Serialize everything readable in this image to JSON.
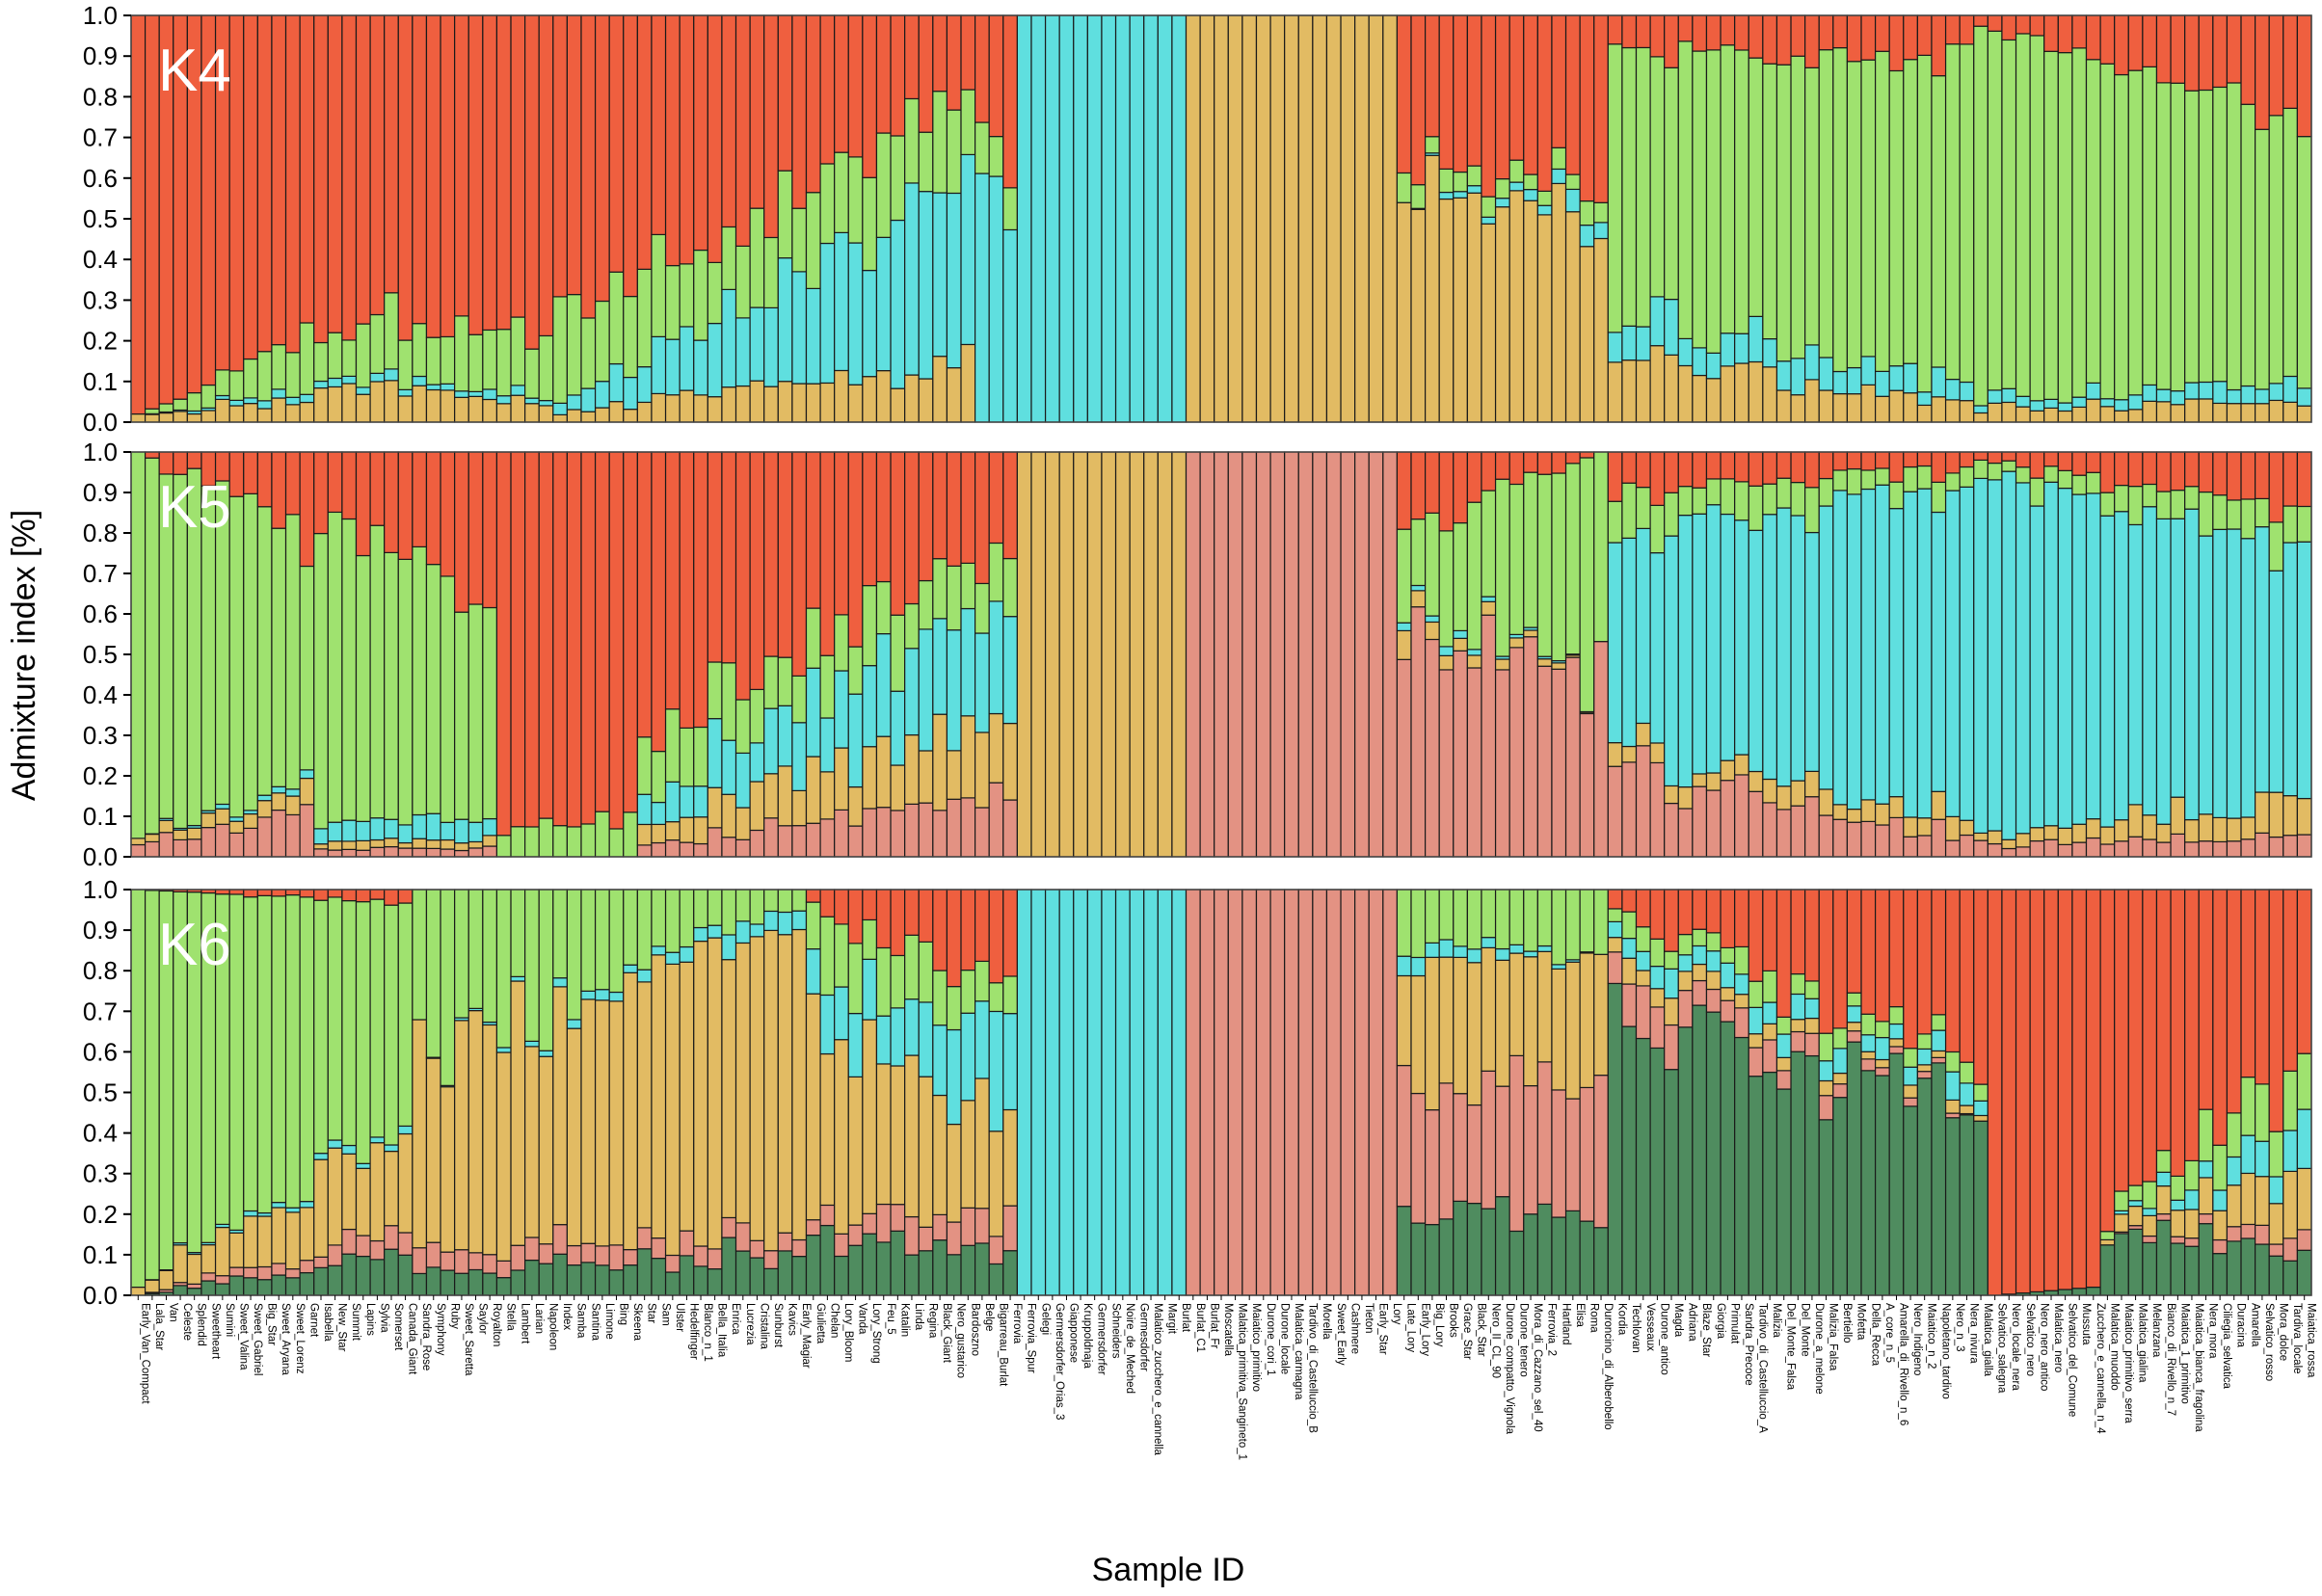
{
  "chart_data": [
    {
      "type": "bar",
      "stacked": true,
      "panel_label": "K4",
      "ylim": [
        0,
        1
      ],
      "yticks": [
        "0.0",
        "0.1",
        "0.2",
        "0.3",
        "0.4",
        "0.5",
        "0.6",
        "0.7",
        "0.8",
        "0.9",
        "1.0"
      ],
      "cluster_colors": [
        "#e2bb63",
        "#5fdfdf",
        "#9fe26f",
        "#ef5f3f"
      ],
      "group_profiles": [
        {
          "from": 0,
          "to": 13,
          "start": [
            0.02,
            0.0,
            0.0,
            0.98
          ],
          "end": [
            0.05,
            0.02,
            0.12,
            0.81
          ]
        },
        {
          "from": 13,
          "to": 30,
          "start": [
            0.1,
            0.02,
            0.12,
            0.76
          ],
          "end": [
            0.05,
            0.02,
            0.15,
            0.78
          ]
        },
        {
          "from": 30,
          "to": 60,
          "start": [
            0.02,
            0.03,
            0.2,
            0.75
          ],
          "end": [
            0.15,
            0.45,
            0.2,
            0.2
          ]
        },
        {
          "from": 60,
          "to": 63,
          "start": [
            0.0,
            0.6,
            0.1,
            0.3
          ],
          "end": [
            0.0,
            0.6,
            0.1,
            0.3
          ]
        },
        {
          "from": 63,
          "to": 75,
          "start": [
            0.0,
            1.0,
            0.0,
            0.0
          ],
          "end": [
            0.0,
            1.0,
            0.0,
            0.0
          ]
        },
        {
          "from": 75,
          "to": 90,
          "start": [
            1.0,
            0.0,
            0.0,
            0.0
          ],
          "end": [
            1.0,
            0.0,
            0.0,
            0.0
          ]
        },
        {
          "from": 90,
          "to": 105,
          "start": [
            0.6,
            0.0,
            0.05,
            0.35
          ],
          "end": [
            0.45,
            0.05,
            0.05,
            0.45
          ]
        },
        {
          "from": 105,
          "to": 131,
          "start": [
            0.15,
            0.1,
            0.65,
            0.1
          ],
          "end": [
            0.05,
            0.05,
            0.8,
            0.1
          ]
        },
        {
          "from": 131,
          "to": 155,
          "start": [
            0.03,
            0.02,
            0.93,
            0.02
          ],
          "end": [
            0.05,
            0.05,
            0.62,
            0.28
          ]
        }
      ],
      "values_note": "Per-sample stacked proportions from bottom: yellow, cyan, green, red"
    },
    {
      "type": "bar",
      "stacked": true,
      "panel_label": "K5",
      "ylim": [
        0,
        1
      ],
      "yticks": [
        "0.0",
        "0.1",
        "0.2",
        "0.3",
        "0.4",
        "0.5",
        "0.6",
        "0.7",
        "0.8",
        "0.9",
        "1.0"
      ],
      "cluster_colors": [
        "#e39283",
        "#e2bb63",
        "#5fdfdf",
        "#9fe26f",
        "#ef5f3f"
      ],
      "group_profiles": [
        {
          "from": 0,
          "to": 13,
          "start": [
            0.03,
            0.02,
            0.0,
            0.95,
            0.0
          ],
          "end": [
            0.1,
            0.05,
            0.02,
            0.63,
            0.2
          ]
        },
        {
          "from": 13,
          "to": 26,
          "start": [
            0.02,
            0.02,
            0.05,
            0.7,
            0.21
          ],
          "end": [
            0.02,
            0.02,
            0.05,
            0.55,
            0.36
          ]
        },
        {
          "from": 26,
          "to": 36,
          "start": [
            0.0,
            0.0,
            0.0,
            0.05,
            0.95
          ],
          "end": [
            0.0,
            0.0,
            0.0,
            0.1,
            0.9
          ]
        },
        {
          "from": 36,
          "to": 63,
          "start": [
            0.03,
            0.05,
            0.07,
            0.15,
            0.7
          ],
          "end": [
            0.15,
            0.2,
            0.3,
            0.15,
            0.2
          ]
        },
        {
          "from": 63,
          "to": 75,
          "start": [
            0.0,
            1.0,
            0.0,
            0.0,
            0.0
          ],
          "end": [
            0.0,
            1.0,
            0.0,
            0.0,
            0.0
          ]
        },
        {
          "from": 75,
          "to": 90,
          "start": [
            1.0,
            0.0,
            0.0,
            0.0,
            0.0
          ],
          "end": [
            1.0,
            0.0,
            0.0,
            0.0,
            0.0
          ]
        },
        {
          "from": 90,
          "to": 105,
          "start": [
            0.55,
            0.05,
            0.02,
            0.2,
            0.18
          ],
          "end": [
            0.45,
            0.0,
            0.0,
            0.55,
            0.0
          ]
        },
        {
          "from": 105,
          "to": 131,
          "start": [
            0.2,
            0.05,
            0.55,
            0.1,
            0.1
          ],
          "end": [
            0.05,
            0.05,
            0.8,
            0.05,
            0.05
          ]
        },
        {
          "from": 131,
          "to": 155,
          "start": [
            0.03,
            0.02,
            0.9,
            0.03,
            0.02
          ],
          "end": [
            0.05,
            0.1,
            0.6,
            0.1,
            0.15
          ]
        }
      ],
      "values_note": "Per-sample stacked proportions from bottom: salmon, yellow, cyan, green, red"
    },
    {
      "type": "bar",
      "stacked": true,
      "panel_label": "K6",
      "ylim": [
        0,
        1
      ],
      "yticks": [
        "0.0",
        "0.1",
        "0.2",
        "0.3",
        "0.4",
        "0.5",
        "0.6",
        "0.7",
        "0.8",
        "0.9",
        "1.0"
      ],
      "cluster_colors": [
        "#4f8c5f",
        "#e39283",
        "#e2bb63",
        "#5fdfdf",
        "#9fe26f",
        "#ef5f3f"
      ],
      "group_profiles": [
        {
          "from": 0,
          "to": 20,
          "start": [
            0.0,
            0.0,
            0.02,
            0.0,
            0.98,
            0.0
          ],
          "end": [
            0.1,
            0.05,
            0.25,
            0.02,
            0.55,
            0.03
          ]
        },
        {
          "from": 20,
          "to": 48,
          "start": [
            0.05,
            0.05,
            0.5,
            0.0,
            0.4,
            0.0
          ],
          "end": [
            0.1,
            0.05,
            0.75,
            0.05,
            0.05,
            0.0
          ]
        },
        {
          "from": 48,
          "to": 63,
          "start": [
            0.15,
            0.05,
            0.5,
            0.1,
            0.15,
            0.05
          ],
          "end": [
            0.1,
            0.1,
            0.2,
            0.25,
            0.1,
            0.25
          ]
        },
        {
          "from": 63,
          "to": 75,
          "start": [
            0.0,
            0.0,
            0.0,
            1.0,
            0.0,
            0.0
          ],
          "end": [
            0.0,
            0.0,
            0.0,
            1.0,
            0.0,
            0.0
          ]
        },
        {
          "from": 75,
          "to": 90,
          "start": [
            0.0,
            1.0,
            0.0,
            0.0,
            0.0,
            0.0
          ],
          "end": [
            0.0,
            1.0,
            0.0,
            0.0,
            0.0,
            0.0
          ]
        },
        {
          "from": 90,
          "to": 105,
          "start": [
            0.2,
            0.3,
            0.3,
            0.05,
            0.15,
            0.0
          ],
          "end": [
            0.2,
            0.35,
            0.3,
            0.0,
            0.15,
            0.0
          ]
        },
        {
          "from": 105,
          "to": 132,
          "start": [
            0.7,
            0.1,
            0.05,
            0.05,
            0.05,
            0.05
          ],
          "end": [
            0.45,
            0.0,
            0.02,
            0.05,
            0.05,
            0.43
          ]
        },
        {
          "from": 132,
          "to": 140,
          "start": [
            0.0,
            0.0,
            0.0,
            0.0,
            0.0,
            1.0
          ],
          "end": [
            0.02,
            0.0,
            0.0,
            0.0,
            0.0,
            0.98
          ]
        },
        {
          "from": 140,
          "to": 155,
          "start": [
            0.15,
            0.0,
            0.02,
            0.0,
            0.03,
            0.8
          ],
          "end": [
            0.1,
            0.05,
            0.15,
            0.1,
            0.15,
            0.45
          ]
        }
      ],
      "values_note": "Per-sample stacked proportions from bottom: dark green, salmon, yellow, cyan, green, red"
    }
  ],
  "axes": {
    "ylabel": "Admixture index [%]",
    "xlabel": "Sample ID"
  },
  "samples": [
    "Early_Van_Compact",
    "Lala_Star",
    "Van",
    "Celeste",
    "Splendid",
    "Sweetheart",
    "Sumini",
    "Sweet_Valina",
    "Sweet_Gabriel",
    "Big_Star",
    "Sweet_Aryana",
    "Sweet_Lorenz",
    "Garnet",
    "Isabella",
    "New_Star",
    "Summit",
    "Lapins",
    "Sylvia",
    "Somerset",
    "Canada_Giant",
    "Sandra_Rose",
    "Symphony",
    "Ruby",
    "Sweet_Saretta",
    "Saylor",
    "Royalton",
    "Stella",
    "Lambert",
    "Larian",
    "Napoleon",
    "Index",
    "Samba",
    "Santina",
    "Limone",
    "Bing",
    "Skeena",
    "Star",
    "Sam",
    "Ulster",
    "Hedelfinger",
    "Blanco_n_1",
    "Bella_Italia",
    "Enrica",
    "Lucrezia",
    "Cristalina",
    "Sunburst",
    "Kavics",
    "Early_Magiar",
    "Giulietta",
    "Chelan",
    "Lory_Bloom",
    "Vanda",
    "Lory_Strong",
    "Feu_5",
    "Katalin",
    "Linda",
    "Regina",
    "Black_Giant",
    "Nero_gustarico",
    "Bardoszno",
    "Belge",
    "Bigarreau_Burlat",
    "Ferrovia",
    "Ferrovia_Spur",
    "Gelegi",
    "Germersdorfer_Orias_3",
    "Giapponese",
    "Kruppoldnaja",
    "Germersdorfer",
    "Schneiders",
    "Noire_de_Meched",
    "Germesdorfer",
    "Malatico_zucchero_e_cannella",
    "Margit",
    "Burlat",
    "Burlat_C1",
    "Burlat_Fr",
    "Moscatella",
    "Malatica_primitiva_Sangineto_1",
    "Maiatico_primitivo",
    "Durone_cori_1",
    "Durone_locale",
    "Malatica_carmagna",
    "Tardivo_di_Castelluccio_B",
    "Morella",
    "Sweet_Early",
    "Cashmere",
    "Tieton",
    "Early_Star",
    "Lory",
    "Late_Lory",
    "Early_Lory",
    "Big_Lory",
    "Brooks",
    "Grace_Star",
    "Black_Star",
    "Nero_II_CL_90",
    "Durone_compatto_Vignola",
    "Durone_tenero",
    "Mora_di_Cazzano_sel_40",
    "Ferrovia_2",
    "Hartland",
    "Elisa",
    "Roma",
    "Duroncino_di_Alberobello",
    "Kordia",
    "Techlovan",
    "Vesseaux",
    "Durone_antico",
    "Magda",
    "Adriana",
    "Blaze_Star",
    "Giorgia",
    "Primulat",
    "Sandra_Precoce",
    "Tardivo_di_Castelluccio_A",
    "Malizia",
    "Del_Monte_Falsa",
    "Del_Monte",
    "Durone_a_melone",
    "Malizia_Falsa",
    "Bertiello",
    "Mofetta",
    "Della_Recca",
    "A_core_n_5",
    "Amarella_di_Rivello_n_6",
    "Nero_Indigeno",
    "Maiatico_n_2",
    "Napoletano_tardivo",
    "Nero_n_3",
    "Nera_nivura",
    "Malatica_gialla",
    "Selvatico_salegna",
    "Nero_locale_nera",
    "Selvatico_nero",
    "Nero_nero_antico",
    "Malatica_nero",
    "Selvatico_del_Comune",
    "Mussuta",
    "Zucchero_e_cannella_n_4",
    "Malatica_muoddo",
    "Maiatico_primitivo_serra",
    "Malatica_gialina",
    "Melanzana",
    "Bianco_di_Rivello_n_7",
    "Maiatica_1_primitivo",
    "Maiatica_bianca_fragolina",
    "Nera_mora",
    "Ciliegia_selvatica",
    "Duracina",
    "Amarella",
    "Selvatico_rosso",
    "Mora_dolce",
    "Tardiva_locale",
    "Maiatica_rossa"
  ]
}
